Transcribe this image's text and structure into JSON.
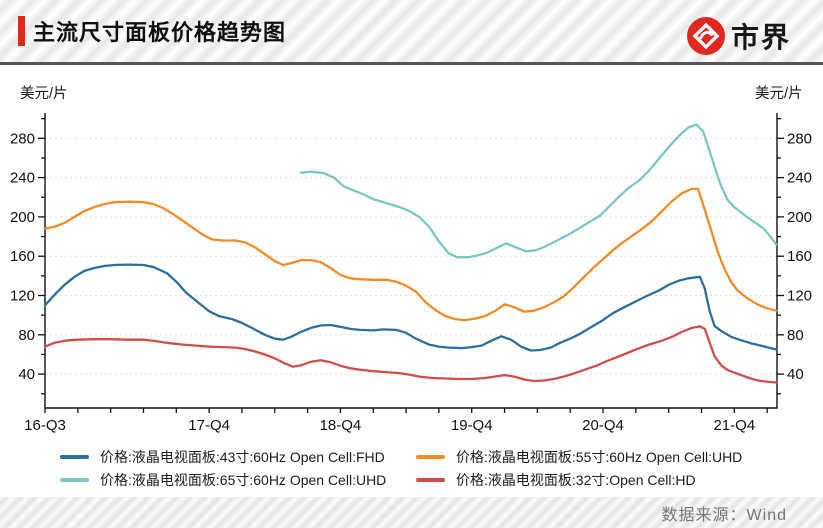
{
  "header": {
    "title": "主流尺寸面板价格趋势图",
    "brand": "市界",
    "accent_color": "#e2281e"
  },
  "axes": {
    "unit_left": "美元/片",
    "unit_right": "美元/片"
  },
  "source": "数据来源：Wind",
  "legend": [
    {
      "label": "价格:液晶电视面板:43寸:60Hz Open Cell:FHD"
    },
    {
      "label": "价格:液晶电视面板:55寸:60Hz Open Cell:UHD"
    },
    {
      "label": "价格:液晶电视面板:65寸:60Hz Open Cell:UHD"
    },
    {
      "label": "价格:液晶电视面板:32寸:Open Cell:HD"
    }
  ],
  "chart_data": {
    "type": "line",
    "title": "主流尺寸面板价格趋势图",
    "ylabel": "美元/片",
    "x_unit": "quarters since 2016-Q3 (monthly curve sampled)",
    "x_range": [
      0,
      22.3
    ],
    "y_range": [
      5,
      306
    ],
    "y_ticks": [
      40,
      80,
      120,
      160,
      200,
      240,
      280
    ],
    "y_minor_step": 20,
    "x_ticks": [
      {
        "q": 0,
        "label": "16-Q3"
      },
      {
        "q": 5,
        "label": "17-Q4"
      },
      {
        "q": 9,
        "label": "18-Q4"
      },
      {
        "q": 13,
        "label": "19-Q4"
      },
      {
        "q": 17,
        "label": "20-Q4"
      },
      {
        "q": 21,
        "label": "21-Q4"
      }
    ],
    "x_minor_step": 1,
    "grid": "horizontal-dashed",
    "grid_color": "#eadada",
    "axis_color": "#111111",
    "legend_position": "bottom",
    "series": [
      {
        "name": "价格:液晶电视面板:43寸:60Hz Open Cell:FHD",
        "color": "#2d6e9e",
        "points": [
          [
            0,
            110
          ],
          [
            0.3,
            121
          ],
          [
            0.6,
            131
          ],
          [
            0.9,
            139
          ],
          [
            1.2,
            145
          ],
          [
            1.5,
            148
          ],
          [
            1.8,
            150
          ],
          [
            2.1,
            151
          ],
          [
            2.5,
            151.5
          ],
          [
            3,
            151
          ],
          [
            3.3,
            149
          ],
          [
            3.7,
            143
          ],
          [
            4,
            134
          ],
          [
            4.3,
            123
          ],
          [
            4.7,
            112
          ],
          [
            5,
            104
          ],
          [
            5.3,
            99
          ],
          [
            5.7,
            96
          ],
          [
            6,
            92
          ],
          [
            6.3,
            87
          ],
          [
            6.7,
            80
          ],
          [
            7,
            76
          ],
          [
            7.25,
            75
          ],
          [
            7.5,
            78
          ],
          [
            7.8,
            83
          ],
          [
            8.1,
            87
          ],
          [
            8.4,
            89.5
          ],
          [
            8.7,
            90
          ],
          [
            9,
            88
          ],
          [
            9.3,
            86
          ],
          [
            9.6,
            85
          ],
          [
            10,
            84.5
          ],
          [
            10.3,
            85.5
          ],
          [
            10.7,
            85
          ],
          [
            11,
            82
          ],
          [
            11.3,
            76
          ],
          [
            11.7,
            70
          ],
          [
            12,
            68
          ],
          [
            12.3,
            67
          ],
          [
            12.7,
            66.5
          ],
          [
            13,
            67.5
          ],
          [
            13.3,
            69
          ],
          [
            13.6,
            74
          ],
          [
            13.9,
            78.5
          ],
          [
            14.2,
            75
          ],
          [
            14.5,
            68
          ],
          [
            14.8,
            64
          ],
          [
            15.1,
            64.5
          ],
          [
            15.4,
            67
          ],
          [
            15.7,
            72
          ],
          [
            16,
            76
          ],
          [
            16.3,
            81
          ],
          [
            16.6,
            87
          ],
          [
            17,
            95
          ],
          [
            17.3,
            102
          ],
          [
            17.7,
            109
          ],
          [
            18,
            114
          ],
          [
            18.3,
            119
          ],
          [
            18.7,
            125
          ],
          [
            19,
            131
          ],
          [
            19.3,
            135
          ],
          [
            19.6,
            137.5
          ],
          [
            19.95,
            139
          ],
          [
            20.1,
            127
          ],
          [
            20.25,
            104
          ],
          [
            20.4,
            89
          ],
          [
            20.6,
            84
          ],
          [
            20.9,
            78
          ],
          [
            21.2,
            74.5
          ],
          [
            21.5,
            71.5
          ],
          [
            21.8,
            69
          ],
          [
            22.1,
            66.5
          ],
          [
            22.28,
            65
          ]
        ]
      },
      {
        "name": "价格:液晶电视面板:55寸:60Hz Open Cell:UHD",
        "color": "#ef8c28",
        "points": [
          [
            0,
            188
          ],
          [
            0.3,
            190
          ],
          [
            0.6,
            194
          ],
          [
            0.9,
            200
          ],
          [
            1.2,
            206
          ],
          [
            1.5,
            210
          ],
          [
            1.8,
            213
          ],
          [
            2.1,
            215
          ],
          [
            2.6,
            215.5
          ],
          [
            3,
            215
          ],
          [
            3.3,
            213
          ],
          [
            3.6,
            209
          ],
          [
            3.9,
            203
          ],
          [
            4.2,
            196
          ],
          [
            4.5,
            189
          ],
          [
            4.8,
            182
          ],
          [
            5.1,
            177
          ],
          [
            5.4,
            176
          ],
          [
            5.8,
            176
          ],
          [
            6.1,
            174
          ],
          [
            6.4,
            169
          ],
          [
            6.7,
            162
          ],
          [
            7,
            155
          ],
          [
            7.25,
            151
          ],
          [
            7.5,
            153
          ],
          [
            7.8,
            156
          ],
          [
            8.1,
            156
          ],
          [
            8.4,
            154
          ],
          [
            8.7,
            148
          ],
          [
            9,
            141
          ],
          [
            9.3,
            137.5
          ],
          [
            9.6,
            136.5
          ],
          [
            10,
            136
          ],
          [
            10.4,
            136
          ],
          [
            10.7,
            134
          ],
          [
            11,
            130
          ],
          [
            11.3,
            124
          ],
          [
            11.6,
            113
          ],
          [
            11.9,
            105
          ],
          [
            12.2,
            99
          ],
          [
            12.5,
            96
          ],
          [
            12.8,
            95
          ],
          [
            13.1,
            96.5
          ],
          [
            13.4,
            99
          ],
          [
            13.7,
            104
          ],
          [
            14,
            111
          ],
          [
            14.3,
            108
          ],
          [
            14.6,
            103.5
          ],
          [
            14.9,
            104.5
          ],
          [
            15.2,
            108
          ],
          [
            15.5,
            113
          ],
          [
            15.8,
            119
          ],
          [
            16.1,
            128
          ],
          [
            16.4,
            138
          ],
          [
            16.7,
            148
          ],
          [
            17,
            157
          ],
          [
            17.3,
            166
          ],
          [
            17.6,
            174
          ],
          [
            17.9,
            181
          ],
          [
            18.2,
            188
          ],
          [
            18.5,
            196
          ],
          [
            18.8,
            206
          ],
          [
            19.1,
            216
          ],
          [
            19.4,
            224
          ],
          [
            19.7,
            228.5
          ],
          [
            19.9,
            228.5
          ],
          [
            20.1,
            207
          ],
          [
            20.3,
            186
          ],
          [
            20.5,
            164
          ],
          [
            20.7,
            147
          ],
          [
            20.9,
            134
          ],
          [
            21.1,
            125
          ],
          [
            21.4,
            117
          ],
          [
            21.7,
            111
          ],
          [
            22,
            107
          ],
          [
            22.28,
            104.5
          ]
        ]
      },
      {
        "name": "价格:液晶电视面板:65寸:60Hz Open Cell:UHD",
        "color": "#7ac6c2",
        "points": [
          [
            7.8,
            245
          ],
          [
            8.1,
            246
          ],
          [
            8.5,
            244.5
          ],
          [
            8.8,
            240
          ],
          [
            9.1,
            231
          ],
          [
            9.4,
            227
          ],
          [
            9.7,
            223
          ],
          [
            10,
            218
          ],
          [
            10.4,
            214
          ],
          [
            10.8,
            210
          ],
          [
            11.1,
            206
          ],
          [
            11.4,
            200
          ],
          [
            11.7,
            190
          ],
          [
            12,
            175
          ],
          [
            12.3,
            163
          ],
          [
            12.55,
            159
          ],
          [
            12.9,
            159
          ],
          [
            13.2,
            161
          ],
          [
            13.5,
            164
          ],
          [
            13.8,
            169
          ],
          [
            14.05,
            173
          ],
          [
            14.35,
            169
          ],
          [
            14.65,
            165
          ],
          [
            14.95,
            166
          ],
          [
            15.25,
            170
          ],
          [
            15.6,
            176
          ],
          [
            16,
            183
          ],
          [
            16.3,
            189
          ],
          [
            16.6,
            195
          ],
          [
            16.9,
            201
          ],
          [
            17.2,
            211
          ],
          [
            17.5,
            221
          ],
          [
            17.8,
            230
          ],
          [
            18.1,
            237
          ],
          [
            18.4,
            247
          ],
          [
            18.7,
            259
          ],
          [
            19,
            271
          ],
          [
            19.3,
            282
          ],
          [
            19.6,
            291
          ],
          [
            19.85,
            294
          ],
          [
            20.05,
            287
          ],
          [
            20.2,
            272
          ],
          [
            20.4,
            251
          ],
          [
            20.6,
            231
          ],
          [
            20.8,
            217
          ],
          [
            21,
            210
          ],
          [
            21.3,
            202
          ],
          [
            21.6,
            195
          ],
          [
            21.9,
            188
          ],
          [
            22.1,
            180
          ],
          [
            22.28,
            172
          ]
        ]
      },
      {
        "name": "价格:液晶电视面板:32寸:Open Cell:HD",
        "color": "#cf4e4b",
        "points": [
          [
            0,
            68
          ],
          [
            0.3,
            72
          ],
          [
            0.6,
            74
          ],
          [
            1,
            75
          ],
          [
            1.5,
            75.5
          ],
          [
            2,
            75.5
          ],
          [
            2.5,
            75
          ],
          [
            3,
            75
          ],
          [
            3.4,
            73.5
          ],
          [
            3.8,
            71.5
          ],
          [
            4.2,
            70
          ],
          [
            4.6,
            69
          ],
          [
            5,
            68
          ],
          [
            5.4,
            67.5
          ],
          [
            5.8,
            67
          ],
          [
            6.1,
            65.5
          ],
          [
            6.4,
            63
          ],
          [
            6.7,
            60
          ],
          [
            7,
            56
          ],
          [
            7.3,
            51
          ],
          [
            7.55,
            47.5
          ],
          [
            7.8,
            49
          ],
          [
            8.1,
            52.5
          ],
          [
            8.4,
            54
          ],
          [
            8.7,
            52
          ],
          [
            9,
            48.5
          ],
          [
            9.3,
            46
          ],
          [
            9.6,
            44.5
          ],
          [
            10,
            43
          ],
          [
            10.4,
            42
          ],
          [
            10.8,
            41
          ],
          [
            11.1,
            39.5
          ],
          [
            11.4,
            37.5
          ],
          [
            11.8,
            36
          ],
          [
            12.2,
            35.5
          ],
          [
            12.6,
            35
          ],
          [
            13,
            35
          ],
          [
            13.4,
            36
          ],
          [
            13.7,
            37.5
          ],
          [
            14,
            39
          ],
          [
            14.3,
            37.5
          ],
          [
            14.6,
            34.5
          ],
          [
            14.9,
            33
          ],
          [
            15.2,
            33.5
          ],
          [
            15.5,
            35
          ],
          [
            15.8,
            37.5
          ],
          [
            16.1,
            40.5
          ],
          [
            16.4,
            44
          ],
          [
            16.8,
            48.5
          ],
          [
            17.1,
            53
          ],
          [
            17.4,
            57
          ],
          [
            17.7,
            61
          ],
          [
            18,
            65
          ],
          [
            18.4,
            70
          ],
          [
            18.8,
            74
          ],
          [
            19.1,
            78
          ],
          [
            19.4,
            83
          ],
          [
            19.7,
            87
          ],
          [
            19.95,
            88.5
          ],
          [
            20.1,
            86
          ],
          [
            20.25,
            72
          ],
          [
            20.4,
            58
          ],
          [
            20.6,
            49
          ],
          [
            20.8,
            44
          ],
          [
            21,
            41.5
          ],
          [
            21.2,
            39
          ],
          [
            21.5,
            35.5
          ],
          [
            21.8,
            33
          ],
          [
            22.1,
            32
          ],
          [
            22.28,
            31.5
          ]
        ]
      }
    ]
  }
}
